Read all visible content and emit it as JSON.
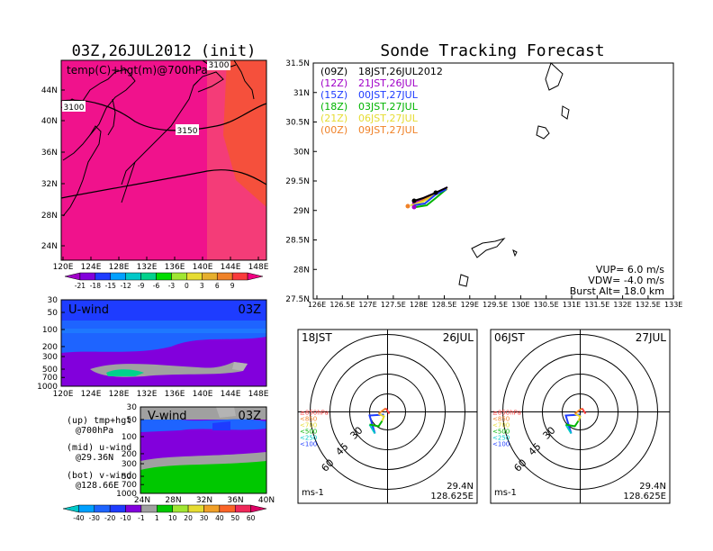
{
  "left_map": {
    "title": "03Z,26JUL2012 (init)",
    "label": "temp(C)+hgt(m)@700hPa",
    "contours": [
      "3100",
      "3150",
      "3100"
    ],
    "lat_ticks": [
      "44N",
      "40N",
      "36N",
      "32N",
      "28N",
      "24N"
    ],
    "lon_ticks": [
      "120E",
      "124E",
      "128E",
      "132E",
      "136E",
      "140E",
      "144E",
      "148E"
    ],
    "colorbar": [
      "-21",
      "-18",
      "-15",
      "-12",
      "-9",
      "-6",
      "-3",
      "0",
      "3",
      "6",
      "9"
    ],
    "colorbar_colors": [
      "#a000c8",
      "#8200dc",
      "#1e3cff",
      "#00a0ff",
      "#00c8c8",
      "#00d28c",
      "#00dc00",
      "#a0e632",
      "#e6dc32",
      "#e6af2d",
      "#f08228",
      "#fa3c3c",
      "#f00082"
    ]
  },
  "u_wind": {
    "label": "U-wind",
    "time": "03Z",
    "levels": [
      "30",
      "50",
      "100",
      "200",
      "300",
      "500",
      "700",
      "1000"
    ],
    "lon_ticks": [
      "120E",
      "124E",
      "128E",
      "132E",
      "136E",
      "140E",
      "144E",
      "148E"
    ]
  },
  "v_wind": {
    "label": "V-wind",
    "time": "03Z",
    "levels": [
      "30",
      "50",
      "100",
      "200",
      "300",
      "500",
      "700",
      "1000"
    ],
    "lat_ticks": [
      "24N",
      "28N",
      "32N",
      "36N",
      "40N"
    ]
  },
  "legend_notes": {
    "up": "(up) tmp+hgt",
    "up2": "@700hPa",
    "mid": "(mid) u-wind",
    "mid2": "@29.36N",
    "bot": "(bot) v-wind",
    "bot2": "@128.66E"
  },
  "wind_colorbar": [
    "-40",
    "-30",
    "-20",
    "-10",
    "-1",
    "1",
    "10",
    "20",
    "30",
    "40",
    "50",
    "60"
  ],
  "tracking": {
    "title": "Sonde Tracking Forecast",
    "legend": [
      {
        "z": "(09Z)",
        "t": "18JST,26JUL2012",
        "color": "#000000"
      },
      {
        "z": "(12Z)",
        "t": "21JST,26JUL",
        "color": "#a000c8"
      },
      {
        "z": "(15Z)",
        "t": "00JST,27JUL",
        "color": "#1e3cff"
      },
      {
        "z": "(18Z)",
        "t": "03JST,27JUL",
        "color": "#00b400"
      },
      {
        "z": "(21Z)",
        "t": "06JST,27JUL",
        "color": "#e6dc32"
      },
      {
        "z": "(00Z)",
        "t": "09JST,27JUL",
        "color": "#f08228"
      }
    ],
    "lat_ticks": [
      "31.5N",
      "31N",
      "30.5N",
      "30N",
      "29.5N",
      "29N",
      "28.5N",
      "28N",
      "27.5N"
    ],
    "lon_ticks": [
      "126E",
      "126.5E",
      "127E",
      "127.5E",
      "128E",
      "128.5E",
      "129E",
      "129.5E",
      "130E",
      "130.5E",
      "131E",
      "131.5E",
      "132E",
      "132.5E",
      "133E"
    ],
    "params": [
      "VUP= 6.0 m/s",
      "VDW= -4.0 m/s",
      "Burst Alt= 18.0 km"
    ]
  },
  "polar_left": {
    "time": "18JST",
    "date": "26JUL",
    "lat": "29.4N",
    "lon": "128.625E",
    "unit": "ms-1",
    "rings": [
      "30",
      "45",
      "60"
    ],
    "levels": [
      "≥850hPa",
      "<850",
      "<700",
      "<500",
      "<250",
      "<100"
    ]
  },
  "polar_right": {
    "time": "06JST",
    "date": "27JUL",
    "lat": "29.4N",
    "lon": "128.625E",
    "unit": "ms-1",
    "rings": [
      "30",
      "45",
      "60"
    ],
    "levels": [
      "≥850hPa",
      "<850",
      "<700",
      "<500",
      "<250",
      "<100"
    ]
  },
  "level_colors": [
    "#fa3c3c",
    "#f08228",
    "#e6dc32",
    "#00b400",
    "#00c8c8",
    "#1e3cff"
  ]
}
